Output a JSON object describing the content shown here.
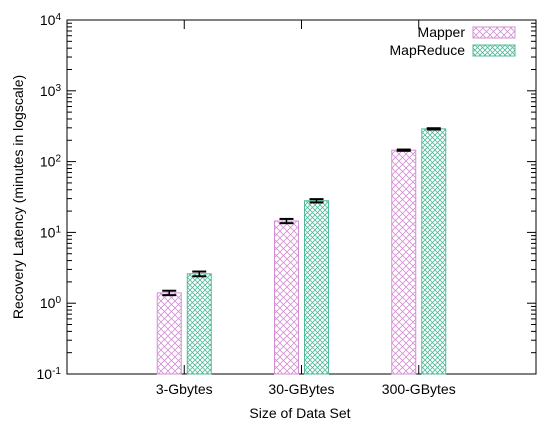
{
  "chart_data": {
    "type": "bar",
    "xlabel": "Size of Data Set",
    "ylabel": "Recovery Latency (minutes in logscale)",
    "yscale": "log",
    "ylim": [
      0.1,
      10000
    ],
    "yticks": [
      {
        "value": 0.1,
        "base": "10",
        "exp": "-1"
      },
      {
        "value": 1,
        "base": "10",
        "exp": "0"
      },
      {
        "value": 10,
        "base": "10",
        "exp": "1"
      },
      {
        "value": 100,
        "base": "10",
        "exp": "2"
      },
      {
        "value": 1000,
        "base": "10",
        "exp": "3"
      },
      {
        "value": 10000,
        "base": "10",
        "exp": "4"
      }
    ],
    "categories": [
      "3-Gbytes",
      "30-GBytes",
      "300-GBytes"
    ],
    "series": [
      {
        "name": "Mapper",
        "values": [
          1.4,
          14.5,
          145
        ],
        "error": [
          [
            1.3,
            1.5
          ],
          [
            13.5,
            15.5
          ],
          [
            142,
            148
          ]
        ],
        "color": "#d38fd3"
      },
      {
        "name": "MapReduce",
        "values": [
          2.6,
          28,
          290
        ],
        "error": [
          [
            2.4,
            2.8
          ],
          [
            26.5,
            29.5
          ],
          [
            284,
            296
          ]
        ],
        "color": "#52b89a"
      }
    ],
    "legend_position": "top-right",
    "grid": false
  }
}
